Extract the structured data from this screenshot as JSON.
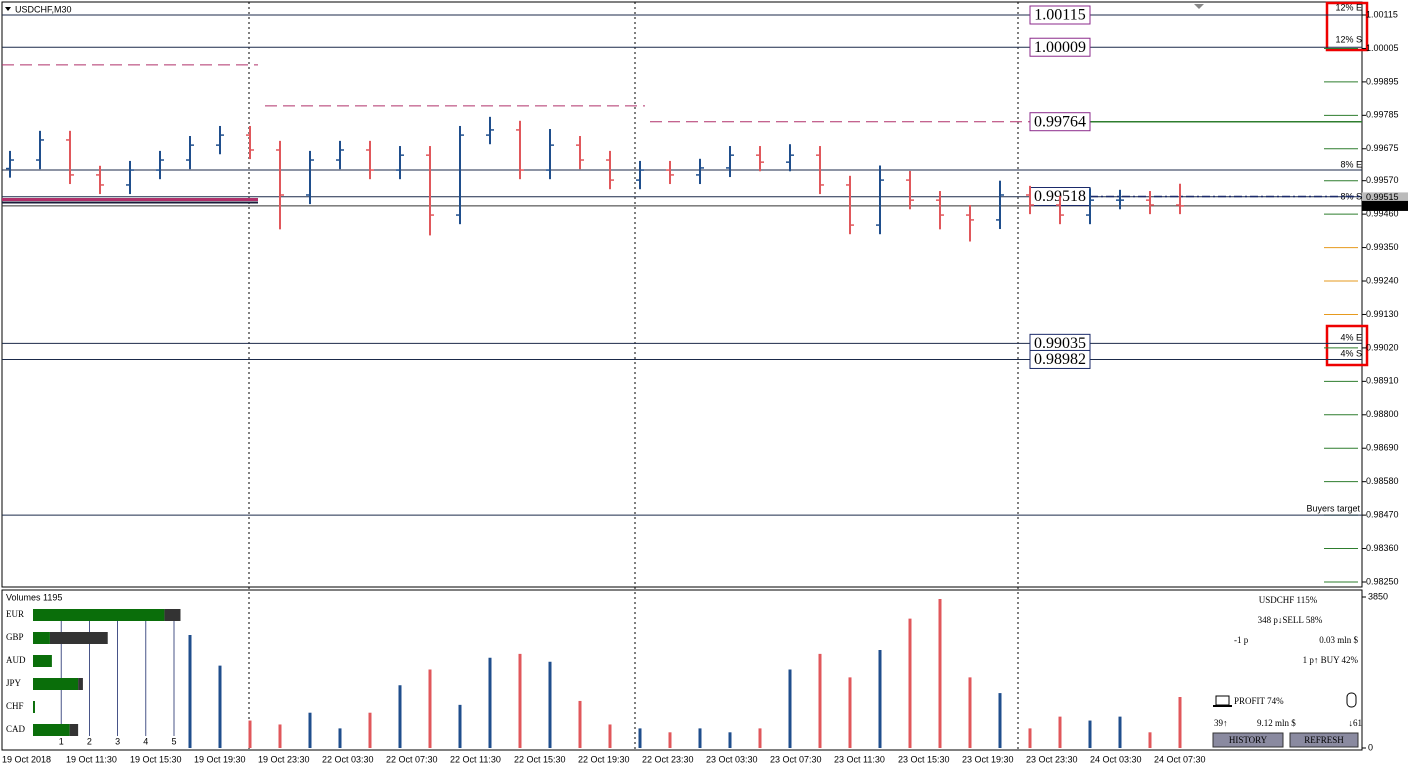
{
  "window": {
    "title": "USDCHF,M30"
  },
  "chart": {
    "type": "ohlc",
    "opens": [
      0.9961,
      0.99638,
      0.99704,
      0.99589,
      0.99556,
      0.99605,
      0.99638,
      0.99687,
      0.9972,
      0.99671,
      0.99523,
      0.99638,
      0.99671,
      0.99605,
      0.99654,
      0.99457,
      0.9972,
      0.99737,
      0.99605,
      0.99687,
      0.99638,
      0.99572,
      0.99605,
      0.99589,
      0.99612,
      0.99654,
      0.99631,
      0.99654,
      0.99556,
      0.99424,
      0.99572,
      0.99506,
      0.99457,
      0.99441,
      0.99523,
      0.9949,
      0.99457,
      0.99506,
      0.99506,
      0.9949
    ],
    "highs": [
      0.99668,
      0.99734,
      0.99734,
      0.99619,
      0.99635,
      0.99668,
      0.99717,
      0.9975,
      0.9975,
      0.99701,
      0.99668,
      0.99701,
      0.99701,
      0.99684,
      0.99684,
      0.9975,
      0.9978,
      0.99767,
      0.9974,
      0.99717,
      0.99668,
      0.99635,
      0.99635,
      0.99642,
      0.99684,
      0.99684,
      0.9969,
      0.99684,
      0.99586,
      0.9962,
      0.99602,
      0.99536,
      0.9949,
      0.9957,
      0.99553,
      0.9952,
      0.99545,
      0.9954,
      0.99536,
      0.9956
    ],
    "lows": [
      0.9958,
      0.99608,
      0.99559,
      0.99526,
      0.99526,
      0.99575,
      0.99608,
      0.99657,
      0.99641,
      0.9941,
      0.99493,
      0.99608,
      0.99575,
      0.99575,
      0.9939,
      0.99427,
      0.9969,
      0.99575,
      0.99575,
      0.99608,
      0.99542,
      0.99542,
      0.99559,
      0.99559,
      0.99582,
      0.99601,
      0.99601,
      0.99526,
      0.99394,
      0.99394,
      0.99476,
      0.9941,
      0.9937,
      0.99411,
      0.9946,
      0.99427,
      0.99427,
      0.99476,
      0.9946,
      0.9946
    ],
    "closes": [
      0.99638,
      0.99704,
      0.99589,
      0.99556,
      0.99605,
      0.99638,
      0.99687,
      0.9972,
      0.99671,
      0.99523,
      0.99638,
      0.99671,
      0.99605,
      0.99654,
      0.99457,
      0.9972,
      0.99737,
      0.99605,
      0.99687,
      0.99638,
      0.99572,
      0.99605,
      0.99589,
      0.99612,
      0.99654,
      0.99631,
      0.99654,
      0.99556,
      0.99424,
      0.99572,
      0.99506,
      0.99457,
      0.99441,
      0.99523,
      0.9949,
      0.99457,
      0.99506,
      0.99506,
      0.9949,
      0.99487
    ],
    "up_color": "#1f4e8c",
    "down_color": "#e0575b",
    "ylim": [
      0.9825,
      1.00115
    ],
    "yticks": [
      1.00115,
      1.00005,
      0.99895,
      0.99785,
      0.99675,
      {
        "value": 0.9957,
        "label": "0.99570"
      },
      {
        "value": 0.9946,
        "label": "0.99460"
      },
      {
        "value": 0.9935,
        "label": "0.99350"
      },
      {
        "value": 0.9924,
        "label": "0.99240"
      },
      {
        "value": 0.9913,
        "label": "0.99130"
      },
      {
        "value": 0.9902,
        "label": "0.99020"
      },
      {
        "value": 0.9891,
        "label": "0.98910"
      },
      {
        "value": 0.988,
        "label": "0.98800"
      },
      {
        "value": 0.9869,
        "label": "0.98690"
      },
      {
        "value": 0.9858,
        "label": "0.98580"
      },
      {
        "value": 0.9847,
        "label": "0.98470"
      },
      {
        "value": 0.9836,
        "label": "0.98360"
      },
      {
        "value": 0.9825,
        "label": "0.98250"
      }
    ],
    "time_labels": [
      "19 Oct 2018",
      "19 Oct 11:30",
      "19 Oct 15:30",
      "19 Oct 19:30",
      "19 Oct 23:30",
      "22 Oct 03:30",
      "22 Oct 07:30",
      "22 Oct 11:30",
      "22 Oct 15:30",
      "22 Oct 19:30",
      "22 Oct 23:30",
      "23 Oct 03:30",
      "23 Oct 07:30",
      "23 Oct 11:30",
      "23 Oct 15:30",
      "23 Oct 19:30",
      "23 Oct 23:30",
      "24 Oct 03:30",
      "24 Oct 07:30"
    ],
    "levels": [
      {
        "price": 1.00115,
        "style": "solid",
        "color": "#8b2a8b"
      },
      {
        "price": 1.00009,
        "style": "solid",
        "color": "#8b2a8b"
      },
      {
        "price": 0.99764,
        "style": "green",
        "color": "#8b2a8b"
      },
      {
        "price": 0.99518,
        "style": "dashdot",
        "color": "#1b2a6a"
      },
      {
        "price": 0.99035,
        "style": "solid",
        "color": "#1b2a6a"
      },
      {
        "price": 0.98982,
        "style": "solid",
        "color": "#1b2a6a"
      }
    ],
    "lines": [
      {
        "price": 0.99605
      },
      {
        "price": 0.99517
      },
      {
        "price": 0.9847,
        "label": "Buyers target"
      }
    ],
    "segments": [
      {
        "price": 0.99951
      },
      {
        "price": 0.99816
      },
      {
        "price": 0.99764
      },
      {
        "price": 0.99503
      }
    ],
    "current": [
      0.99515,
      0.99487
    ],
    "zones": [
      "12% E",
      "12% S",
      "8% E",
      "8% S",
      "4% E",
      "4% S"
    ]
  },
  "volumes": {
    "title": "Volumes 1195",
    "values": [
      null,
      null,
      null,
      null,
      null,
      null,
      2880,
      2100,
      700,
      600,
      900,
      500,
      900,
      1600,
      2000,
      1100,
      2300,
      2400,
      2200,
      1200,
      600,
      500,
      400,
      500,
      400,
      500,
      2000,
      2400,
      1800,
      2500,
      3300,
      3800,
      1800,
      1400,
      500,
      800,
      700,
      800,
      400,
      1300
    ],
    "ylim": [
      0,
      3850
    ],
    "yticks": [
      3850,
      0
    ]
  },
  "strength": {
    "currencies": [
      "EUR",
      "GBP",
      "AUD",
      "JPY",
      "CHF",
      "CAD"
    ],
    "bull": [
      4.66,
      0.6,
      0.67,
      1.6,
      0.07,
      1.3
    ],
    "bear": [
      0.57,
      2.05,
      0,
      0.17,
      0,
      0.3
    ],
    "xlim": [
      0,
      5
    ],
    "xticks": [
      1,
      2,
      3,
      4,
      5
    ],
    "bull_color": "#0a6e0a",
    "bear_color": "#333333"
  },
  "panel": {
    "pair": "USDCHF 115%",
    "sell": "348 p↓SELL 58%",
    "pips": "-1 p",
    "sell_volume": "0.03 mln $",
    "buy": "1 p↑ BUY 42%",
    "profit": "PROFIT 74%",
    "buy_count": "39↑",
    "volume": "9.12 mln $",
    "sell_count": "↓61",
    "buttons": [
      "HISTORY",
      "REFRESH"
    ]
  }
}
